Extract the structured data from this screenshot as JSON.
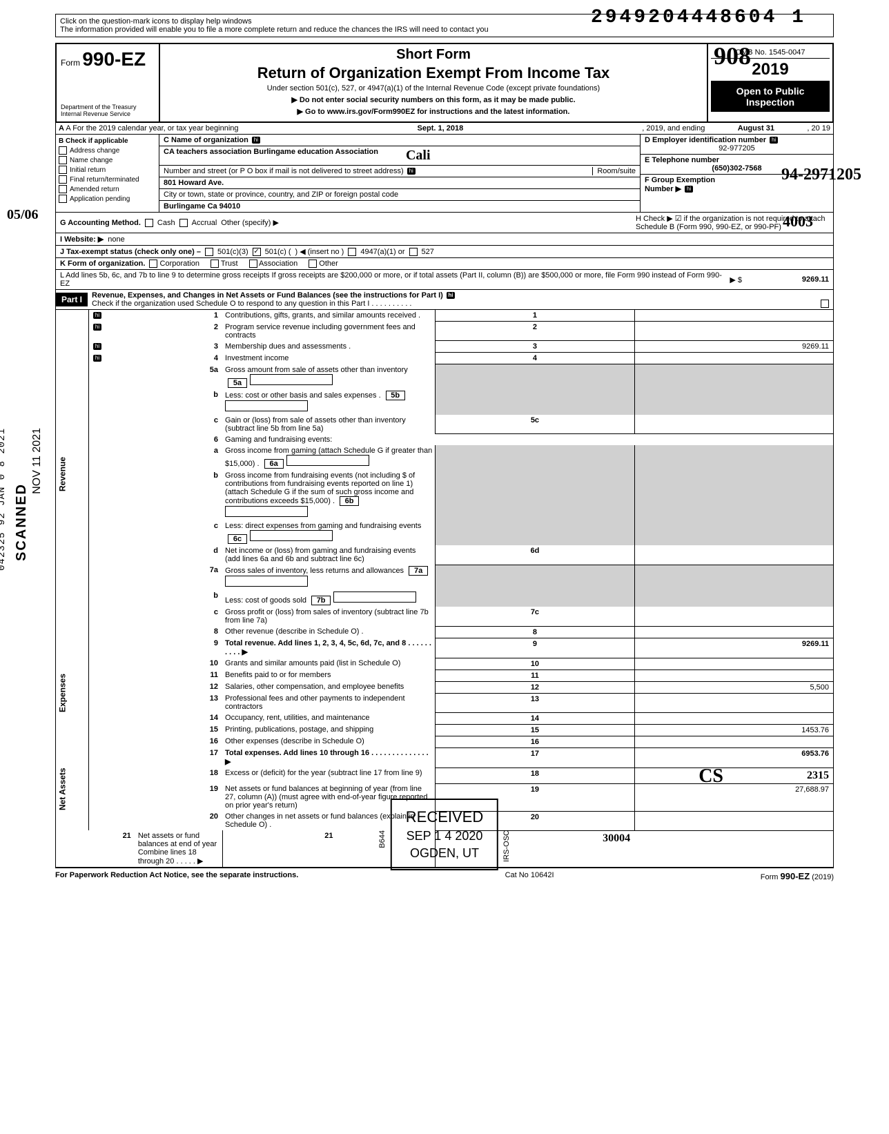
{
  "dln": "2949204448604 1",
  "help": {
    "l1": "Click on the question-mark icons to display help windows",
    "l2": "The information provided will enable you to file a more complete return and reduce the chances the IRS will need to contact you"
  },
  "header": {
    "form_word": "Form",
    "form_num": "990-EZ",
    "dept": "Department of the Treasury\nInternal Revenue Service",
    "short": "Short Form",
    "title": "Return of Organization Exempt From Income Tax",
    "sub": "Under section 501(c), 527, or 4947(a)(1) of the Internal Revenue Code (except private foundations)",
    "warn1": "▶ Do not enter social security numbers on this form, as it may be made public.",
    "warn2": "▶ Go to www.irs.gov/Form990EZ for instructions and the latest information.",
    "omb": "OMB No. 1545-0047",
    "year": "2019",
    "pub": "Open to Public Inspection"
  },
  "line_a": {
    "pre": "A For the 2019 calendar year, or tax year beginning",
    "begin": "Sept. 1, 2018",
    "mid": ", 2019, and ending",
    "end": "August 31",
    "yy": ", 20  19"
  },
  "box_b": {
    "title": "B Check if applicable",
    "opts": [
      "Address change",
      "Name change",
      "Initial return",
      "Final return/terminated",
      "Amended return",
      "Application pending"
    ]
  },
  "box_c": {
    "name_lab": "C Name of organization",
    "name": "CA teachers association Burlingame education Association",
    "street_lab": "Number and street (or P O  box if mail is not delivered to street address)",
    "room_lab": "Room/suite",
    "street": "801 Howard Ave.",
    "city_lab": "City or town, state or province, country, and ZIP or foreign postal code",
    "city": "Burlingame Ca 94010"
  },
  "box_d": {
    "lab": "D Employer identification number",
    "val": "92-977205"
  },
  "box_e": {
    "lab": "E Telephone number",
    "val": "(650)302-7568"
  },
  "box_f": {
    "lab": "F Group Exemption\nNumber ▶"
  },
  "line_g": {
    "lab": "G Accounting Method.",
    "cash": "Cash",
    "accrual": "Accrual",
    "other": "Other (specify) ▶"
  },
  "line_h": "H Check ▶ ☑ if the organization is not required to attach Schedule B (Form 990, 990-EZ, or 990-PF)",
  "line_i": {
    "lab": "I  Website: ▶",
    "val": "none"
  },
  "line_j": {
    "lab": "J Tax-exempt status (check only one) –",
    "a": "501(c)(3)",
    "b": "501(c) (",
    "c": ") ◀ (insert no )",
    "d": "4947(a)(1) or",
    "e": "527"
  },
  "line_k": {
    "lab": "K Form of organization.",
    "opts": [
      "Corporation",
      "Trust",
      "Association",
      "Other"
    ]
  },
  "line_l": {
    "txt": "L Add lines 5b, 6c, and 7b to line 9 to determine gross receipts  If gross receipts are $200,000 or more, or if total assets (Part II, column (B)) are $500,000 or more, file Form 990 instead of Form 990-EZ",
    "arrow": "▶  $",
    "val": "9269.11"
  },
  "part1": {
    "hdr": "Part I",
    "title": "Revenue, Expenses, and Changes in Net Assets or Fund Balances (see the instructions for Part I)",
    "sched_o": "Check if the organization used Schedule O to respond to any question in this Part I .  .  .  .  .  .  .  .  .  ."
  },
  "sections": {
    "rev": "Revenue",
    "exp": "Expenses",
    "net": "Net Assets"
  },
  "rows": [
    {
      "n": "1",
      "d": "Contributions, gifts, grants, and similar amounts received .",
      "box": "1",
      "v": ""
    },
    {
      "n": "2",
      "d": "Program service revenue including government fees and contracts",
      "box": "2",
      "v": ""
    },
    {
      "n": "3",
      "d": "Membership dues and assessments .",
      "box": "3",
      "v": "9269.11"
    },
    {
      "n": "4",
      "d": "Investment income",
      "box": "4",
      "v": ""
    },
    {
      "n": "5a",
      "d": "Gross amount from sale of assets other than inventory",
      "sub": "5a"
    },
    {
      "n": "b",
      "d": "Less: cost or other basis and sales expenses .",
      "sub": "5b"
    },
    {
      "n": "c",
      "d": "Gain or (loss) from sale of assets other than inventory (subtract line 5b from line 5a)",
      "box": "5c",
      "v": ""
    },
    {
      "n": "6",
      "d": "Gaming and fundraising events:"
    },
    {
      "n": "a",
      "d": "Gross income from gaming (attach Schedule G if greater than $15,000) .",
      "sub": "6a"
    },
    {
      "n": "b",
      "d": "Gross income from fundraising events (not including  $               of contributions from fundraising events reported on line 1) (attach Schedule G if the sum of such gross income and contributions exceeds $15,000) .",
      "sub": "6b"
    },
    {
      "n": "c",
      "d": "Less: direct expenses from gaming and fundraising events",
      "sub": "6c"
    },
    {
      "n": "d",
      "d": "Net income or (loss) from gaming and fundraising events (add lines 6a and 6b and subtract line 6c)",
      "box": "6d",
      "v": ""
    },
    {
      "n": "7a",
      "d": "Gross sales of inventory, less returns and allowances",
      "sub": "7a"
    },
    {
      "n": "b",
      "d": "Less: cost of goods sold",
      "sub": "7b"
    },
    {
      "n": "c",
      "d": "Gross profit or (loss) from sales of inventory (subtract line 7b from line 7a)",
      "box": "7c",
      "v": ""
    },
    {
      "n": "8",
      "d": "Other revenue (describe in Schedule O) .",
      "box": "8",
      "v": ""
    },
    {
      "n": "9",
      "d": "Total revenue. Add lines 1, 2, 3, 4, 5c, 6d, 7c, and 8  .  .  .  .  .  .  .  .  .  .  ▶",
      "box": "9",
      "v": "9269.11",
      "tot": true
    },
    {
      "n": "10",
      "d": "Grants and similar amounts paid (list in Schedule O)",
      "box": "10",
      "v": ""
    },
    {
      "n": "11",
      "d": "Benefits paid to or for members",
      "box": "11",
      "v": ""
    },
    {
      "n": "12",
      "d": "Salaries, other compensation, and employee benefits",
      "box": "12",
      "v": "5,500"
    },
    {
      "n": "13",
      "d": "Professional fees and other payments to independent contractors",
      "box": "13",
      "v": ""
    },
    {
      "n": "14",
      "d": "Occupancy, rent, utilities, and maintenance",
      "box": "14",
      "v": ""
    },
    {
      "n": "15",
      "d": "Printing, publications, postage, and shipping",
      "box": "15",
      "v": "1453.76"
    },
    {
      "n": "16",
      "d": "Other expenses (describe in Schedule O)",
      "box": "16",
      "v": ""
    },
    {
      "n": "17",
      "d": "Total expenses. Add lines 10 through 16 .  .  .  .  .  .  .  .  .  .  .  .  .  .  ▶",
      "box": "17",
      "v": "6953.76",
      "tot": true
    },
    {
      "n": "18",
      "d": "Excess or (deficit) for the year (subtract line 17 from line 9)",
      "box": "18",
      "v": "2315",
      "hand": true
    },
    {
      "n": "19",
      "d": "Net assets or fund balances at beginning of year (from line 27, column (A)) (must agree with end-of-year figure reported on prior year's return)",
      "box": "19",
      "v": "27,688.97"
    },
    {
      "n": "20",
      "d": "Other changes in net assets or fund balances (explain in Schedule O) .",
      "box": "20",
      "v": ""
    },
    {
      "n": "21",
      "d": "Net assets or fund balances at end of year  Combine lines 18 through 20  .  .  .  .  .  ▶",
      "box": "21",
      "v": "30004",
      "hand": true
    }
  ],
  "footer": {
    "left": "For Paperwork Reduction Act Notice, see the separate instructions.",
    "mid": "Cat No 10642I",
    "right_pre": "Form ",
    "right_form": "990-EZ",
    "right_yr": " (2019)"
  },
  "stamp": {
    "l1": "RECEIVED",
    "l2": "SEP 1 4 2020",
    "l3": "OGDEN, UT",
    "side_l": "B644",
    "side_r": "IRS-OSC"
  },
  "margin": {
    "scanned": "SCANNED",
    "date1": "NOV 11 2021",
    "date2": "042325 92  JAN 0 8  2021"
  },
  "hand": {
    "ein_suffix": "94-2971205",
    "grp": "4003",
    "sig_top": "908",
    "sig_bot": "CS",
    "cali": "Cali",
    "os": "05/06"
  }
}
